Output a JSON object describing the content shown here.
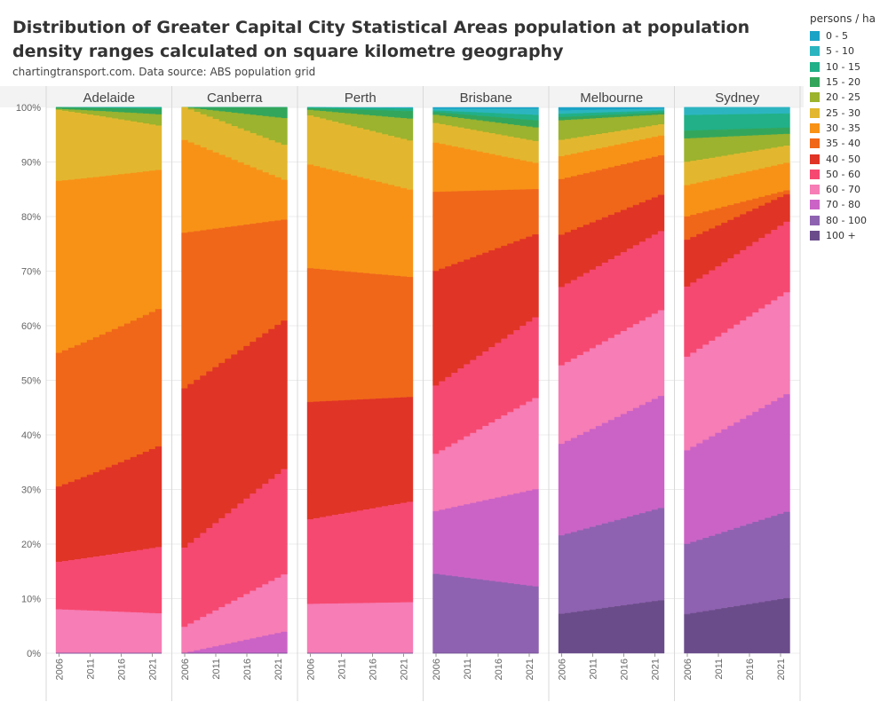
{
  "title": "Distribution of Greater Capital City Statistical Areas population at population density ranges calculated on square kilometre geography",
  "subtitle": "chartingtransport.com. Data source: ABS population grid",
  "legend_title": "persons / ha",
  "chart_data": {
    "type": "area",
    "subtype": "stacked-step-100",
    "x": [
      2006,
      2007,
      2008,
      2009,
      2010,
      2011,
      2012,
      2013,
      2014,
      2015,
      2016,
      2017,
      2018,
      2019,
      2020,
      2021,
      2022
    ],
    "x_tick_labels": [
      "2006",
      "2011",
      "2016",
      "2021"
    ],
    "y_tick_labels": [
      "0%",
      "10%",
      "20%",
      "30%",
      "40%",
      "50%",
      "60%",
      "70%",
      "80%",
      "90%",
      "100%"
    ],
    "ylim": [
      0,
      100
    ],
    "categories": [
      "0 - 5",
      "5 - 10",
      "10 - 15",
      "15 - 20",
      "20 - 25",
      "25 - 30",
      "30 - 35",
      "35 - 40",
      "40 - 50",
      "50 - 60",
      "60 - 70",
      "70 - 80",
      "80 - 100",
      "100 +"
    ],
    "colors": [
      "#1ba3c6",
      "#2cb5c0",
      "#21b087",
      "#33a65c",
      "#9bb32e",
      "#e2b72f",
      "#f89217",
      "#f06719",
      "#e03426",
      "#f64971",
      "#f67db5",
      "#cb63c6",
      "#8e62b0",
      "#6b4c8a"
    ],
    "panels": [
      {
        "city": "Adelaide",
        "start": [
          0,
          0,
          0,
          0.3,
          0.2,
          13,
          31.5,
          24.5,
          13.8,
          8.7,
          8,
          0,
          0,
          0
        ],
        "end": [
          0,
          0,
          0.3,
          0.9,
          1.9,
          7.5,
          23.5,
          23.2,
          17,
          11.2,
          6.7,
          0,
          0,
          0
        ]
      },
      {
        "city": "Canberra",
        "start": [
          0,
          0,
          0,
          0,
          0,
          6,
          17,
          28.5,
          29.2,
          14.5,
          4.8,
          0,
          0,
          0
        ],
        "end": [
          0,
          0,
          0,
          2,
          4.9,
          6.4,
          7.3,
          18.5,
          27.2,
          19.3,
          10.5,
          3.9,
          0,
          0
        ]
      },
      {
        "city": "Perth",
        "start": [
          0,
          0,
          0.2,
          0.3,
          1,
          9,
          19,
          24.5,
          21.5,
          15.5,
          9,
          0,
          0,
          0
        ],
        "end": [
          0.1,
          0.1,
          0.5,
          1.4,
          4,
          9,
          16,
          22,
          19.2,
          18.4,
          9.3,
          0,
          0,
          0
        ]
      },
      {
        "city": "Brisbane",
        "start": [
          0.3,
          0.3,
          0.3,
          0.5,
          1.5,
          3.6,
          9,
          14.5,
          21,
          12.5,
          10.5,
          11.5,
          14.5,
          0
        ],
        "end": [
          0.3,
          1.1,
          1,
          1.3,
          2.5,
          4,
          4.8,
          8.3,
          15.2,
          14.8,
          16.7,
          17.8,
          12.2,
          0
        ]
      },
      {
        "city": "Melbourne",
        "start": [
          0.5,
          0.5,
          0.5,
          0.5,
          3,
          2.5,
          3.5,
          8.5,
          8,
          12,
          12,
          14,
          12,
          6
        ]
      },
      {
        "city": "Sydney",
        "start": [
          0,
          1,
          2,
          1,
          3,
          3,
          4,
          3,
          6,
          9,
          12,
          12,
          9,
          5
        ]
      }
    ]
  }
}
